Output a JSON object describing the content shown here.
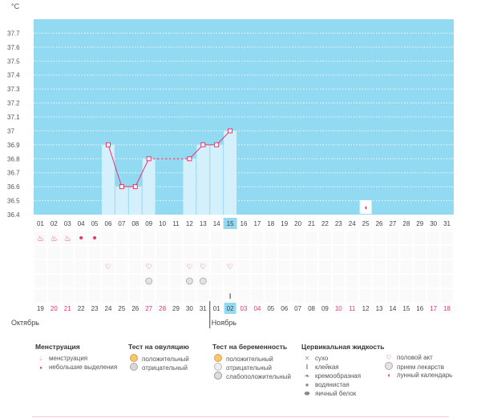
{
  "chart_data": {
    "type": "bar",
    "unit_label": "°C",
    "ylim": [
      36.4,
      37.8
    ],
    "y_ticks": [
      "37.7",
      "37.6",
      "37.5",
      "37.4",
      "37.3",
      "37.2",
      "37.1",
      "37",
      "36.9",
      "36.8",
      "36.7",
      "36.6",
      "36.5",
      "36.4"
    ],
    "cycle_days": [
      "01",
      "02",
      "03",
      "04",
      "05",
      "06",
      "07",
      "08",
      "09",
      "10",
      "11",
      "12",
      "13",
      "14",
      "15",
      "16",
      "17",
      "18",
      "19",
      "20",
      "21",
      "22",
      "23",
      "24",
      "25",
      "26",
      "27",
      "28",
      "29",
      "30",
      "31"
    ],
    "current_day_index": 14,
    "temperatures": [
      null,
      null,
      null,
      null,
      null,
      36.9,
      36.6,
      36.6,
      36.8,
      null,
      null,
      36.8,
      36.9,
      36.9,
      37.0,
      null,
      null,
      null,
      null,
      null,
      null,
      null,
      null,
      null,
      null,
      null,
      null,
      null,
      null,
      null,
      null
    ],
    "dates": [
      "19",
      "20",
      "21",
      "22",
      "23",
      "24",
      "25",
      "26",
      "27",
      "28",
      "29",
      "30",
      "31",
      "01",
      "02",
      "03",
      "04",
      "05",
      "06",
      "07",
      "08",
      "09",
      "10",
      "11",
      "12",
      "13",
      "14",
      "15",
      "16",
      "17",
      "18"
    ],
    "weekend_dates": [
      1,
      2,
      8,
      9,
      15,
      16,
      22,
      23,
      29,
      30
    ],
    "highlighted_date_index": 14,
    "month_labels": [
      {
        "label": "Октябрь",
        "start_index": 0
      },
      {
        "label": "Ноябрь",
        "start_index": 13
      }
    ],
    "markers": {
      "menstruation_heavy": [
        0,
        1,
        2
      ],
      "menstruation_light": [
        3,
        4
      ],
      "intercourse": [
        5,
        8,
        11,
        12,
        14
      ],
      "medication": [
        8,
        11,
        12
      ],
      "cervical_sticky": [
        14
      ],
      "moon_calendar": [
        24
      ]
    },
    "colors": {
      "plot_bg": "#92d9f2",
      "bar_fill": "#d4f0fd",
      "line": "#e8336d",
      "red_text": "#e8336d",
      "highlight": "#92d9f2"
    }
  },
  "legend": {
    "groups": [
      {
        "title": "Менструация",
        "items": [
          {
            "icon": "drop-icon",
            "label": "менструация"
          },
          {
            "icon": "small-drop-icon",
            "label": "небольшие выделения"
          }
        ]
      },
      {
        "title": "Тест на овуляцию",
        "items": [
          {
            "icon": "ovulation-positive-icon",
            "label": "положительный"
          },
          {
            "icon": "ovulation-negative-icon",
            "label": "отрицательный"
          }
        ]
      },
      {
        "title": "Тест на беременность",
        "items": [
          {
            "icon": "pregnancy-positive-icon",
            "label": "положительный"
          },
          {
            "icon": "pregnancy-negative-icon",
            "label": "отрицательный"
          },
          {
            "icon": "pregnancy-weak-icon",
            "label": "слабоположительный"
          }
        ]
      },
      {
        "title": "Цервикальная жидкость",
        "items": [
          {
            "icon": "dry-icon",
            "label": "сухо"
          },
          {
            "icon": "sticky-icon",
            "label": "клейкая"
          },
          {
            "icon": "creamy-icon",
            "label": "кремообразная"
          },
          {
            "icon": "watery-icon",
            "label": "водянистая"
          },
          {
            "icon": "egg-white-icon",
            "label": "яичный белок"
          }
        ]
      },
      {
        "title": "",
        "items": [
          {
            "icon": "heart-icon",
            "label": "половой акт"
          },
          {
            "icon": "pill-icon",
            "label": "прием лекарств"
          },
          {
            "icon": "moon-icon",
            "label": "лунный календарь"
          }
        ]
      }
    ]
  }
}
